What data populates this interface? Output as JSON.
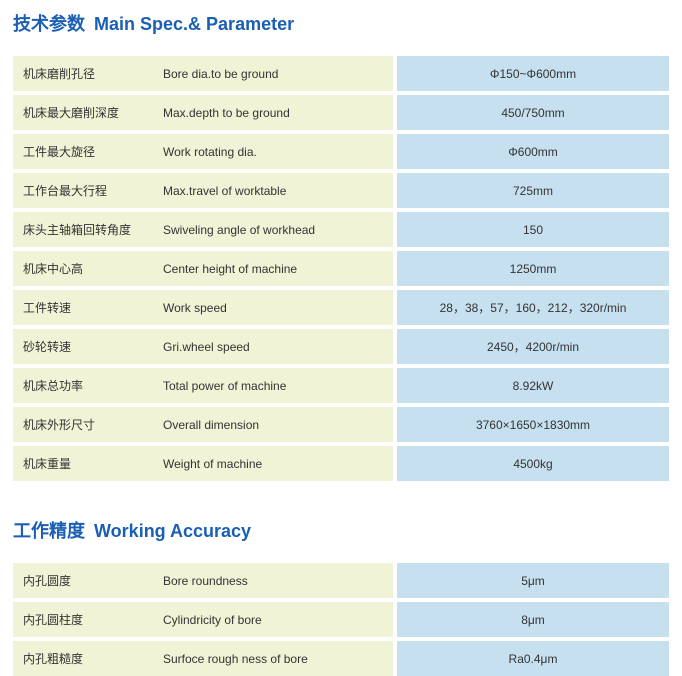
{
  "sections": {
    "spec": {
      "heading_cn": "技术参数",
      "heading_en": "Main Spec.& Parameter",
      "rows": [
        {
          "cn": "机床磨削孔径",
          "en": "Bore dia.to be ground",
          "val": "Φ150~Φ600mm"
        },
        {
          "cn": "机床最大磨削深度",
          "en": "Max.depth to be ground",
          "val": "450/750mm"
        },
        {
          "cn": "工件最大旋径",
          "en": "Work rotating dia.",
          "val": "Φ600mm"
        },
        {
          "cn": "工作台最大行程",
          "en": "Max.travel of worktable",
          "val": "725mm"
        },
        {
          "cn": "床头主轴箱回转角度",
          "en": "Swiveling angle of workhead",
          "val": "150"
        },
        {
          "cn": "机床中心高",
          "en": "Center height of machine",
          "val": "1250mm"
        },
        {
          "cn": "工件转速",
          "en": "Work speed",
          "val": "28，38，57，160，212，320r/min"
        },
        {
          "cn": "砂轮转速",
          "en": "Gri.wheel speed",
          "val": "2450，4200r/min"
        },
        {
          "cn": "机床总功率",
          "en": "Total power of machine",
          "val": "8.92kW"
        },
        {
          "cn": "机床外形尺寸",
          "en": "Overall dimension",
          "val": "3760×1650×1830mm"
        },
        {
          "cn": "机床重量",
          "en": "Weight of machine",
          "val": "4500kg"
        }
      ]
    },
    "accuracy": {
      "heading_cn": "工作精度",
      "heading_en": "Working Accuracy",
      "rows": [
        {
          "cn": "内孔圆度",
          "en": "Bore roundness",
          "val": "5μm"
        },
        {
          "cn": "内孔圆柱度",
          "en": "Cylindricity of bore",
          "val": "8μm"
        },
        {
          "cn": "内孔粗糙度",
          "en": "Surfoce rough ness of bore",
          "val": "Ra0.4μm"
        }
      ]
    }
  },
  "colors": {
    "heading": "#1a5fb4",
    "label_bg": "#f0f3d6",
    "value_bg": "#c7e0f0",
    "text": "#333333"
  }
}
